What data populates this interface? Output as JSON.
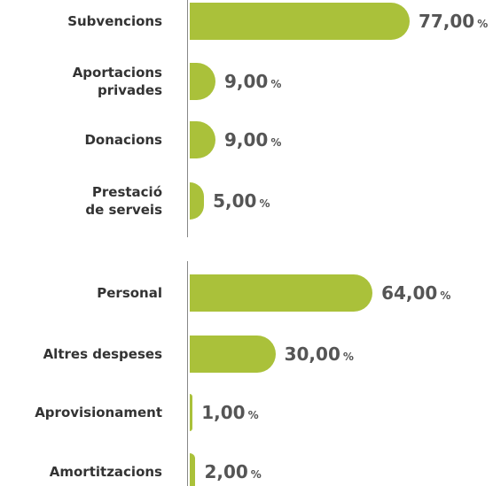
{
  "chart_data": [
    {
      "type": "bar",
      "orientation": "horizontal",
      "categories": [
        "Subvencions",
        "Aportacions\nprivades",
        "Donacions",
        "Prestació\nde serveis"
      ],
      "values": [
        77,
        9,
        9,
        5
      ],
      "value_labels": [
        "77,00",
        "9,00",
        "9,00",
        "5,00"
      ],
      "unit": "%",
      "color": "#aac13a",
      "xlim": [
        0,
        100
      ]
    },
    {
      "type": "bar",
      "orientation": "horizontal",
      "categories": [
        "Personal",
        "Altres despeses",
        "Aprovisionament",
        "Amortitzacions"
      ],
      "values": [
        64,
        30,
        1,
        2
      ],
      "value_labels": [
        "64,00",
        "30,00",
        "1,00",
        "2,00"
      ],
      "unit": "%",
      "color": "#aac13a",
      "xlim": [
        0,
        100
      ]
    }
  ]
}
